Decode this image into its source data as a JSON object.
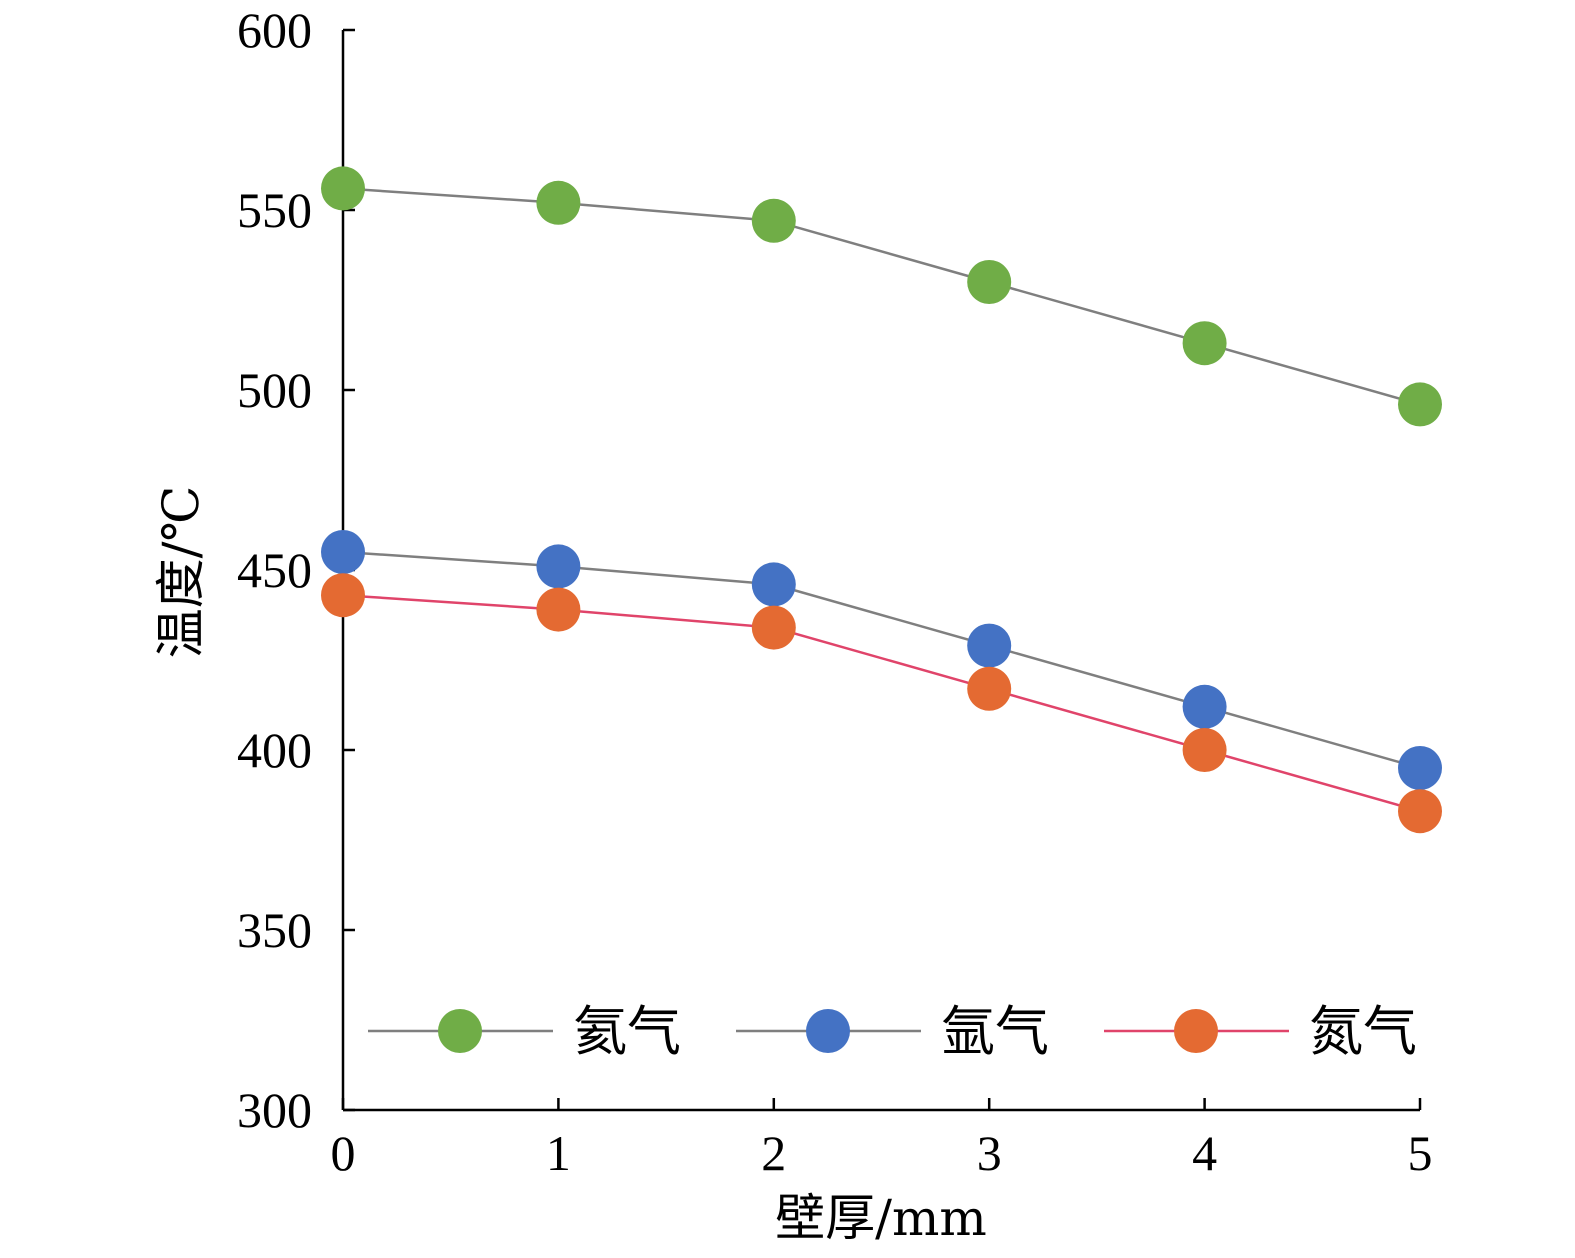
{
  "chart_data": {
    "type": "line",
    "xlabel": "壁厚/mm",
    "ylabel": "温度/℃",
    "x": [
      0,
      1,
      2,
      3,
      4,
      5
    ],
    "xticks": [
      "0",
      "1",
      "2",
      "3",
      "4",
      "5"
    ],
    "yticks": [
      "300",
      "350",
      "400",
      "450",
      "500",
      "550",
      "600"
    ],
    "xlim": [
      0,
      5
    ],
    "ylim": [
      300,
      600
    ],
    "grid": false,
    "legend_position": "bottom",
    "series": [
      {
        "name": "氦气",
        "values": [
          556,
          552,
          547,
          530,
          513,
          496
        ],
        "marker_color": "#70ad47",
        "line_color": "#7f7f7f"
      },
      {
        "name": "氩气",
        "values": [
          455,
          451,
          446,
          429,
          412,
          395
        ],
        "marker_color": "#4472c4",
        "line_color": "#7f7f7f"
      },
      {
        "name": "氮气",
        "values": [
          443,
          439,
          434,
          417,
          400,
          383
        ],
        "marker_color": "#e46a32",
        "line_color": "#e0446a"
      }
    ]
  }
}
